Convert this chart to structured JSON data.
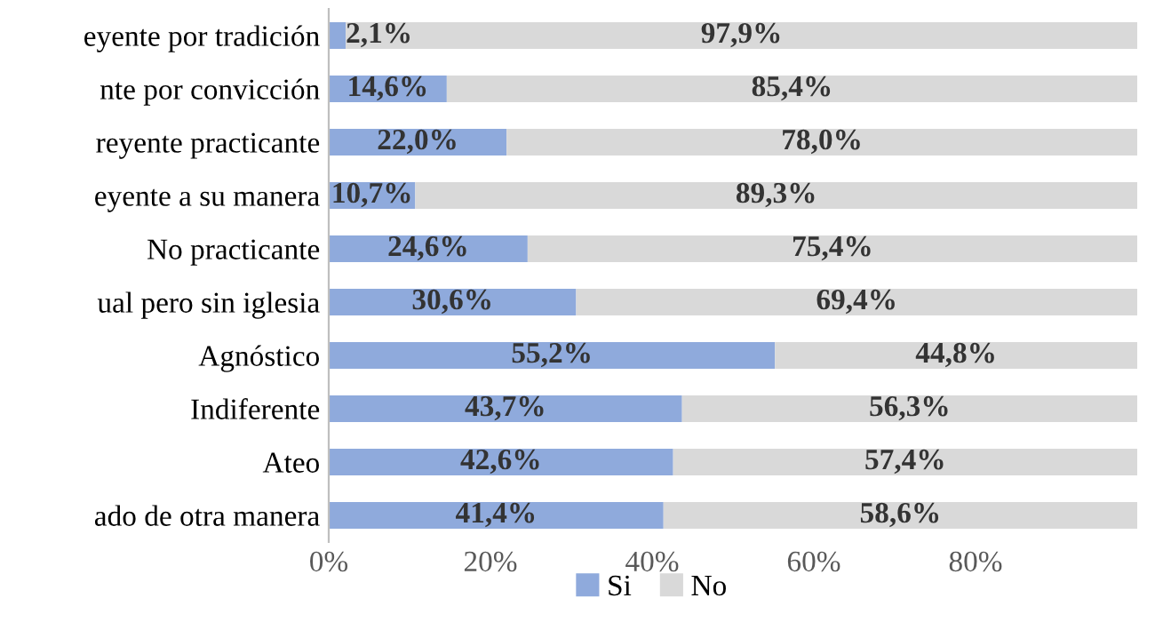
{
  "chart_data": {
    "type": "bar",
    "orientation": "horizontal",
    "stacked": true,
    "categories": [
      "eyente por tradición",
      "nte por convicción",
      "reyente practicante",
      "eyente a su manera",
      "No practicante",
      "ual pero sin iglesia",
      "Agnóstico",
      "Indiferente",
      "Ateo",
      "ado de otra manera"
    ],
    "series": [
      {
        "name": "Si",
        "color": "#8faadc",
        "values": [
          2.1,
          14.6,
          22.0,
          10.7,
          24.6,
          30.6,
          55.2,
          43.7,
          42.6,
          41.4
        ],
        "value_labels": [
          "2,1%",
          "14,6%",
          "22,0%",
          "10,7%",
          "24,6%",
          "30,6%",
          "55,2%",
          "43,7%",
          "42,6%",
          "41,4%"
        ]
      },
      {
        "name": "No",
        "color": "#d9d9d9",
        "values": [
          97.9,
          85.4,
          78.0,
          89.3,
          75.4,
          69.4,
          44.8,
          56.3,
          57.4,
          58.6
        ],
        "value_labels": [
          "97,9%",
          "85,4%",
          "78,0%",
          "89,3%",
          "75,4%",
          "69,4%",
          "44,8%",
          "56,3%",
          "57,4%",
          "58,6%"
        ]
      }
    ],
    "xlim": [
      0,
      100
    ],
    "xticks": [
      {
        "value": 0,
        "label": "0%"
      },
      {
        "value": 20,
        "label": "20%"
      },
      {
        "value": 40,
        "label": "40%"
      },
      {
        "value": 60,
        "label": "60%"
      },
      {
        "value": 80,
        "label": "80%"
      }
    ],
    "legend": "bottom"
  }
}
